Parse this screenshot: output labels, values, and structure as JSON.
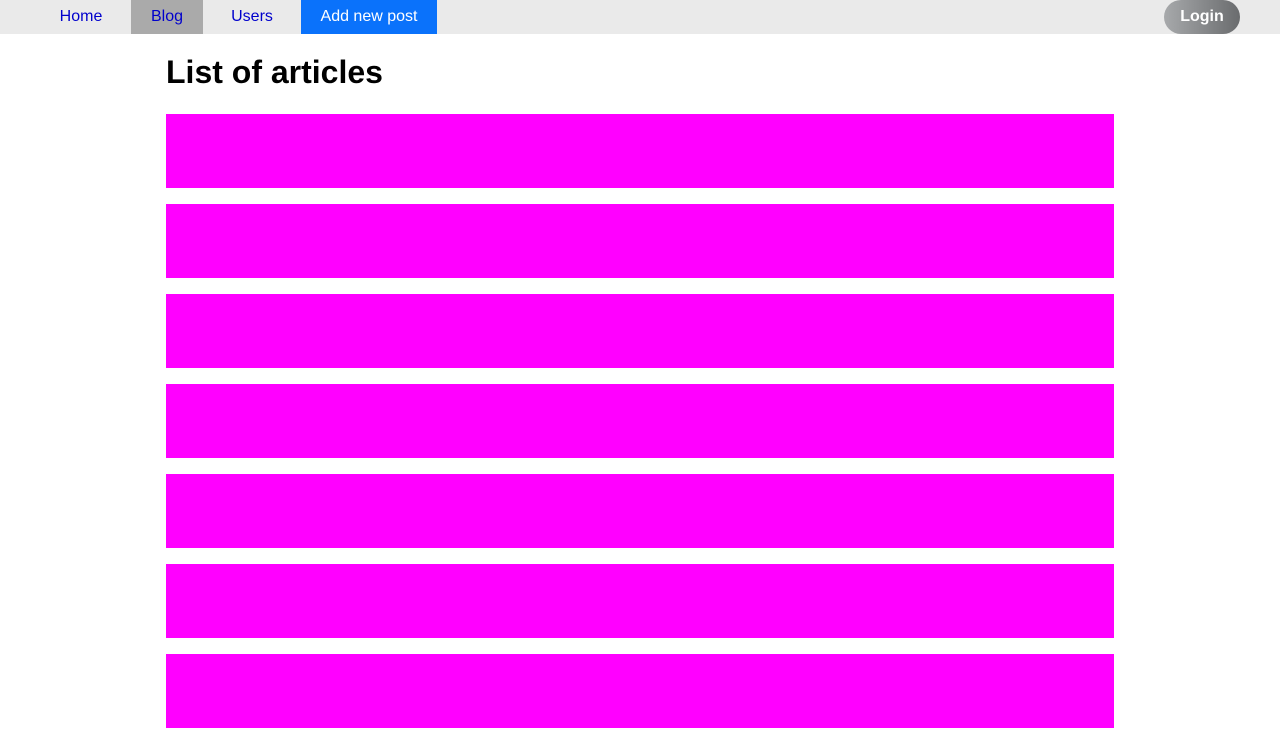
{
  "nav": {
    "home": "Home",
    "blog": "Blog",
    "users": "Users",
    "add_post": "Add new post",
    "login": "Login"
  },
  "main": {
    "title": "List of articles",
    "article_count": 7,
    "article_color": "#ff00ff"
  },
  "colors": {
    "navbar_bg": "#eaeaea",
    "active_tab": "#aaaaaa",
    "primary_button": "#0a72fb",
    "link": "#0000cc"
  }
}
